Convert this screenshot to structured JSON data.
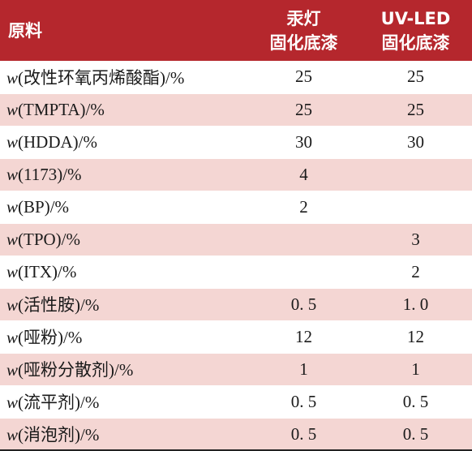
{
  "header": {
    "col0": "原料",
    "col1_line1": "汞灯",
    "col1_line2": "固化底漆",
    "col2_line1": "UV-LED",
    "col2_line2": "固化底漆"
  },
  "rows": [
    {
      "prefix": "w",
      "name": "(改性环氧丙烯酸酯)/%",
      "v1": "25",
      "v2": "25"
    },
    {
      "prefix": "w",
      "name": "(TMPTA)/%",
      "v1": "25",
      "v2": "25"
    },
    {
      "prefix": "w",
      "name": "(HDDA)/%",
      "v1": "30",
      "v2": "30"
    },
    {
      "prefix": "w",
      "name": "(1173)/%",
      "v1": "4",
      "v2": ""
    },
    {
      "prefix": "w",
      "name": "(BP)/%",
      "v1": "2",
      "v2": ""
    },
    {
      "prefix": "w",
      "name": "(TPO)/%",
      "v1": "",
      "v2": "3"
    },
    {
      "prefix": "w",
      "name": "(ITX)/%",
      "v1": "",
      "v2": "2"
    },
    {
      "prefix": "w",
      "name": "(活性胺)/%",
      "v1": "0. 5",
      "v2": "1. 0"
    },
    {
      "prefix": "w",
      "name": "(哑粉)/%",
      "v1": "12",
      "v2": "12"
    },
    {
      "prefix": "w",
      "name": "(哑粉分散剂)/%",
      "v1": "1",
      "v2": "1"
    },
    {
      "prefix": "w",
      "name": "(流平剂)/%",
      "v1": "0. 5",
      "v2": "0. 5"
    },
    {
      "prefix": "w",
      "name": "(消泡剂)/%",
      "v1": "0. 5",
      "v2": "0. 5"
    }
  ],
  "colors": {
    "header_bg": "#b5272d",
    "stripe": "#f4d6d3"
  }
}
